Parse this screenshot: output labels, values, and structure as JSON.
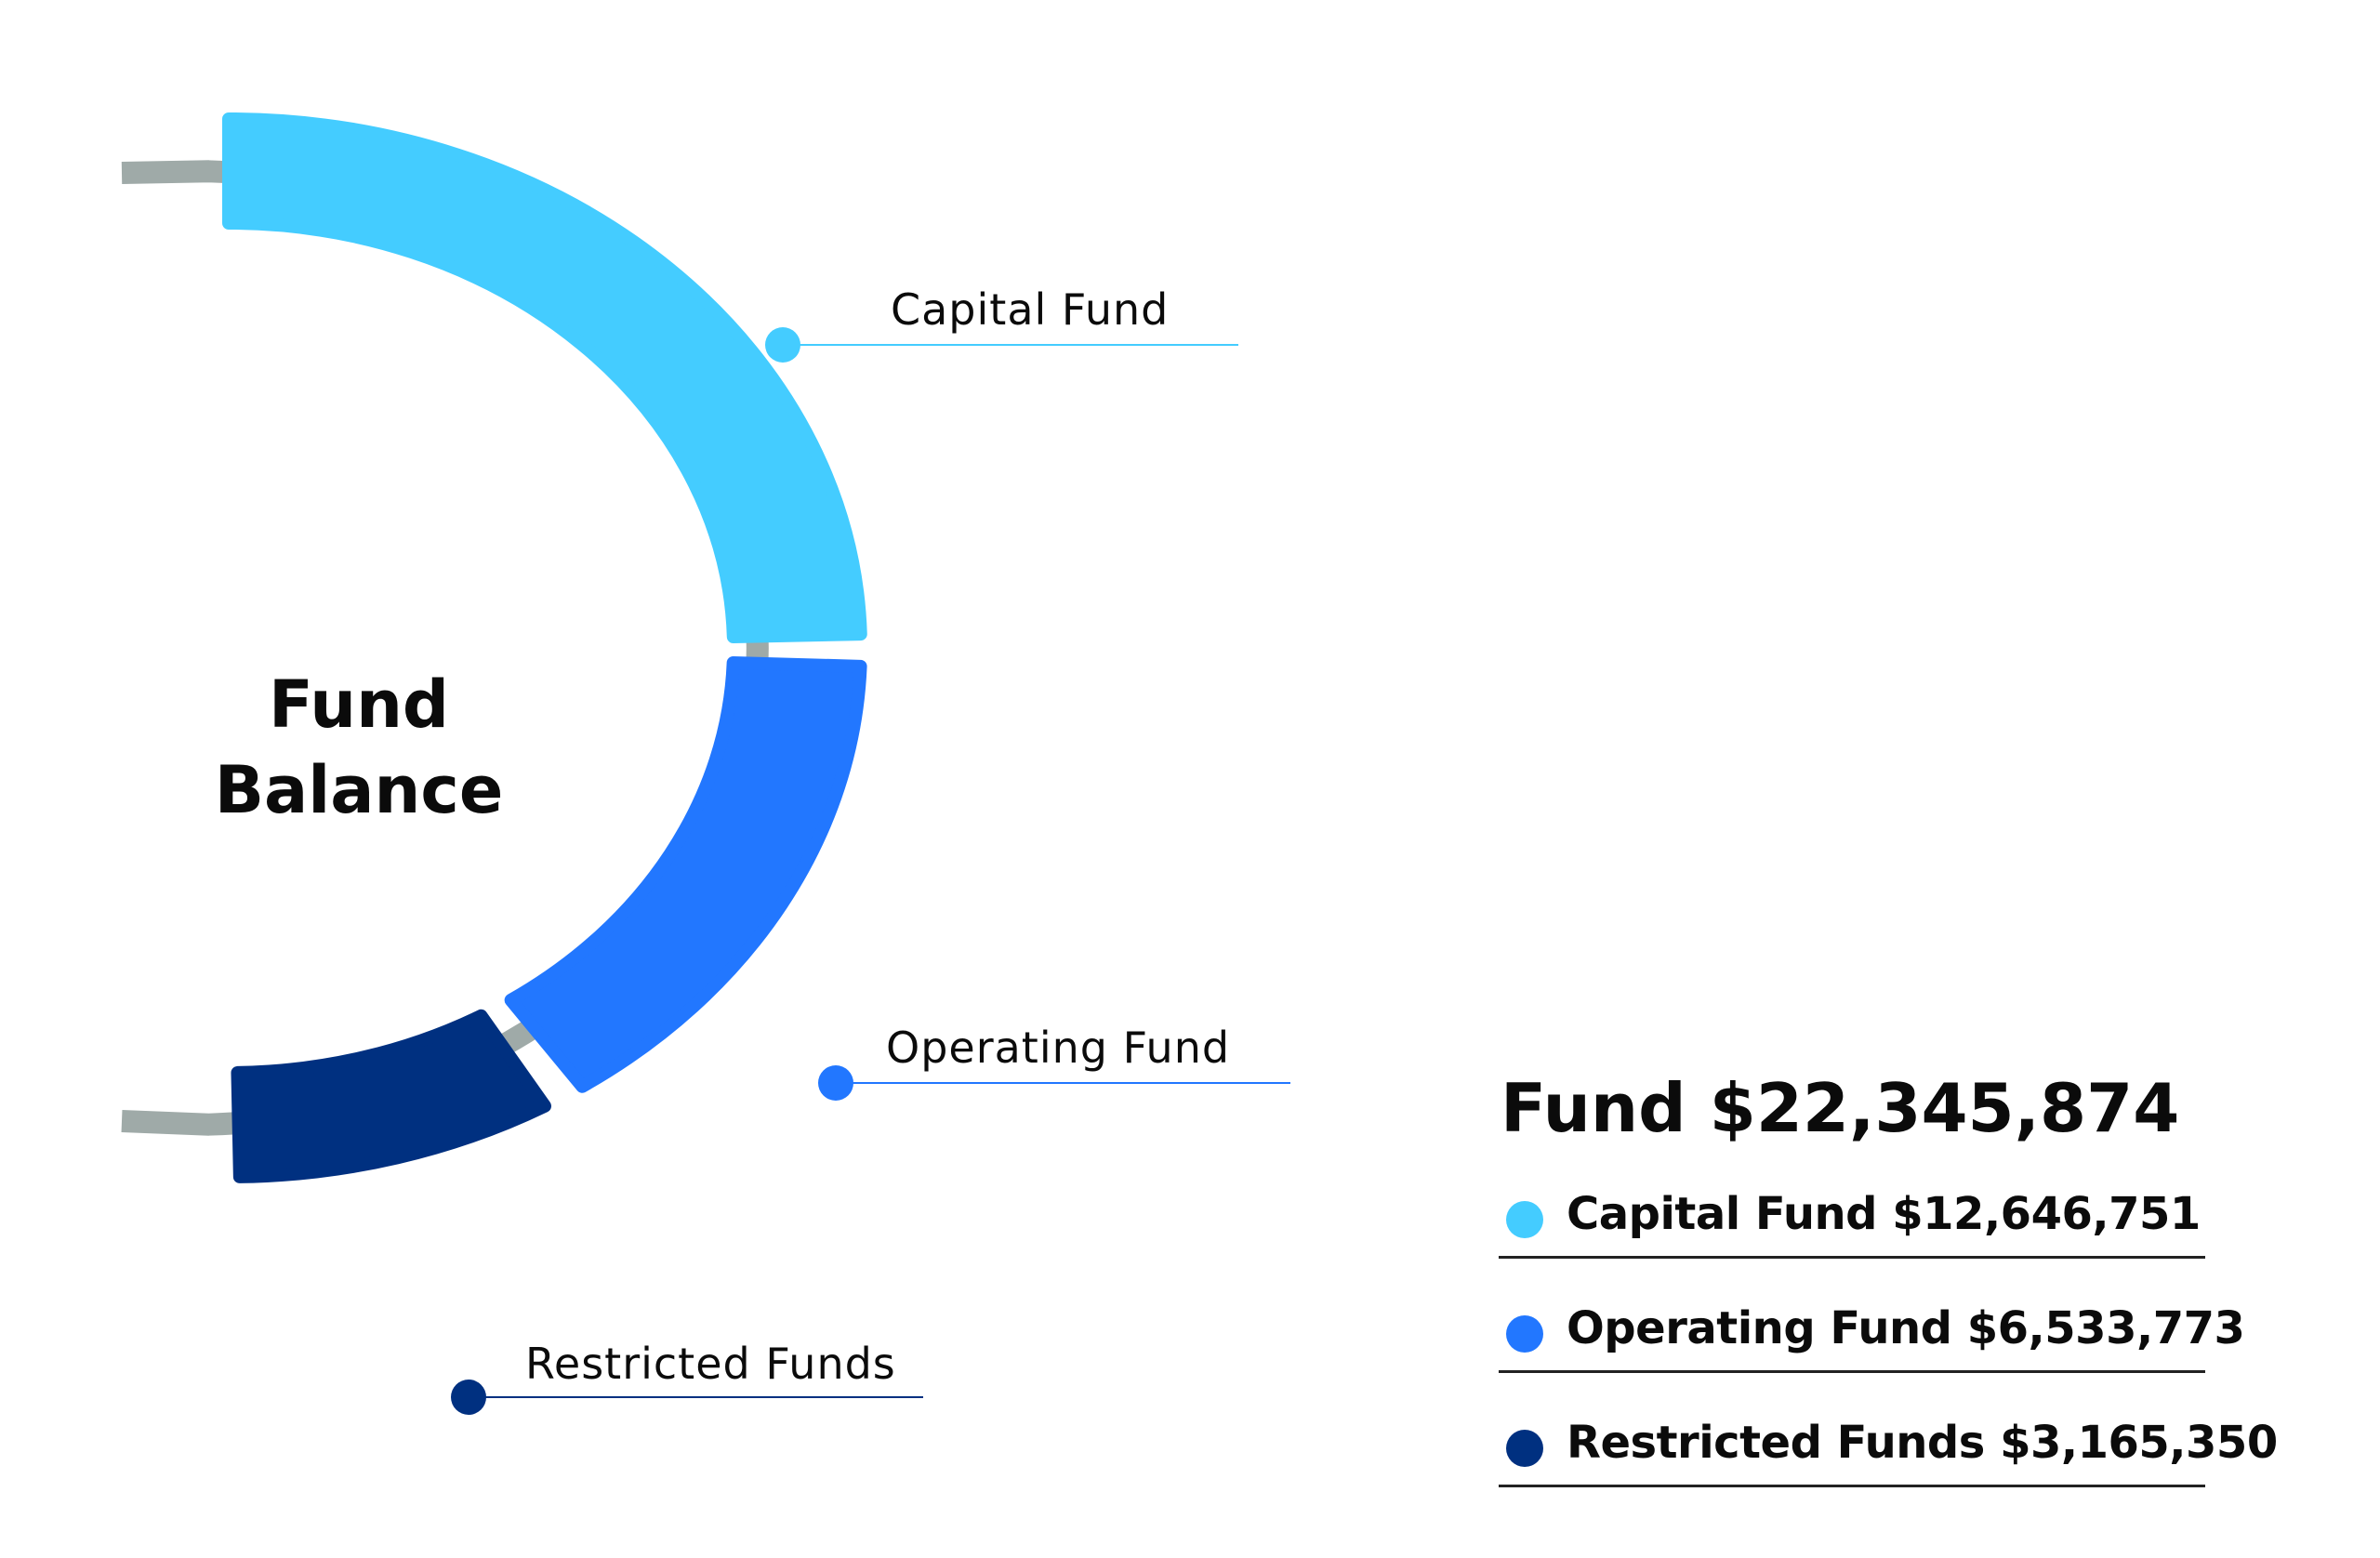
{
  "chart_data": {
    "type": "pie",
    "variant": "half-donut",
    "title": "Fund Balance",
    "total_label": "Fund $22,345,874",
    "total": 22345874,
    "series": [
      {
        "name": "Capital Fund",
        "value": 12646751,
        "legend_label": "Capital Fund $12,646,751",
        "color": "#44CCFF"
      },
      {
        "name": "Operating Fund",
        "value": 6533773,
        "legend_label": "Operating Fund $6,533,773",
        "color": "#2277FF"
      },
      {
        "name": "Restricted Funds",
        "value": 3165350,
        "legend_label": "Restricted Funds $3,165,350",
        "color": "#003080"
      }
    ],
    "track_color": "#9FAAA8",
    "legend_placement": "bottom-right"
  }
}
